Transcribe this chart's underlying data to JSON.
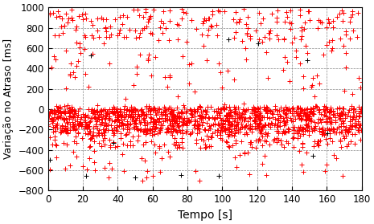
{
  "xlabel": "Tempo [s]",
  "ylabel": "Variação no Atraso [ms]",
  "xlim": [
    0,
    180
  ],
  "ylim": [
    -800,
    1000
  ],
  "xticks": [
    0,
    20,
    40,
    60,
    80,
    100,
    120,
    140,
    160,
    180
  ],
  "yticks": [
    -800,
    -600,
    -400,
    -200,
    0,
    200,
    400,
    600,
    800,
    1000
  ],
  "xlabel_fontsize": 10,
  "ylabel_fontsize": 9,
  "tick_fontsize": 8.5,
  "grid_color": "#888888",
  "marker": "+",
  "red_color": "#ff0000",
  "black_color": "#000000",
  "seed": 42,
  "figsize": [
    4.65,
    2.79
  ],
  "dpi": 100
}
